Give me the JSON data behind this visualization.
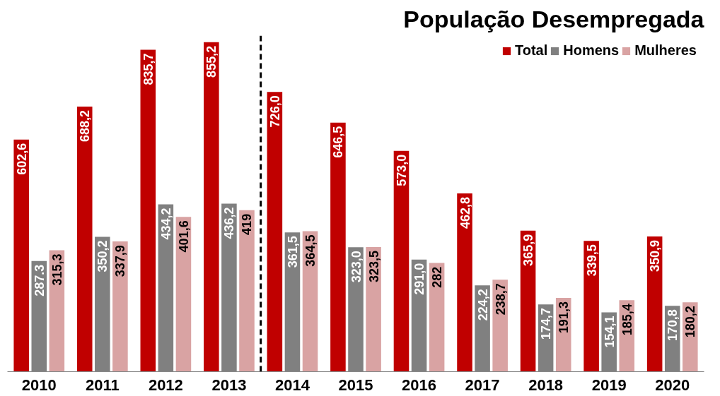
{
  "chart_data": {
    "type": "bar",
    "title": "População Desempregada",
    "x": [
      2010,
      2011,
      2012,
      2013,
      2014,
      2015,
      2016,
      2017,
      2018,
      2019,
      2020
    ],
    "xlim": [
      2009.5,
      2020.5
    ],
    "xticks": [
      2010,
      2011,
      2012,
      2013,
      2014,
      2015,
      2016,
      2017,
      2018,
      2019,
      2020
    ],
    "series": [
      {
        "name": "Total",
        "color": "#c00000",
        "values": [
          602.6,
          688.2,
          835.7,
          855.2,
          726.0,
          646.5,
          573.0,
          462.8,
          365.9,
          339.5,
          350.9
        ],
        "value_labels": [
          "602,6",
          "688,2",
          "835,7",
          "855,2",
          "726,0",
          "646,5",
          "573,0",
          "462,8",
          "365,9",
          "339,5",
          "350,9"
        ]
      },
      {
        "name": "Homens",
        "color": "#808080",
        "values": [
          287.3,
          350.2,
          434.2,
          436.2,
          361.5,
          323.0,
          291.0,
          224.2,
          174.7,
          154.1,
          170.8
        ],
        "value_labels": [
          "287.3",
          "350,2",
          "434,2",
          "436,2",
          "361,5",
          "323,0",
          "291,0",
          "224,2",
          "174,7",
          "154,1",
          "170,8"
        ]
      },
      {
        "name": "Mulheres",
        "color": "#d9a3a3",
        "values": [
          315.3,
          337.9,
          401.6,
          419,
          364.5,
          323.5,
          282,
          238.7,
          191.3,
          185.4,
          180.2
        ],
        "value_labels": [
          "315,3",
          "337,9",
          "401,6",
          "419",
          "364,5",
          "323,5",
          "282",
          "238,7",
          "191,3",
          "185,4",
          "180,2"
        ]
      }
    ],
    "ref_lines": [
      {
        "axis": "x",
        "value": 2013.5,
        "line_style": "dashed",
        "color": "#000000"
      }
    ],
    "legend": "top right",
    "grid": false
  }
}
